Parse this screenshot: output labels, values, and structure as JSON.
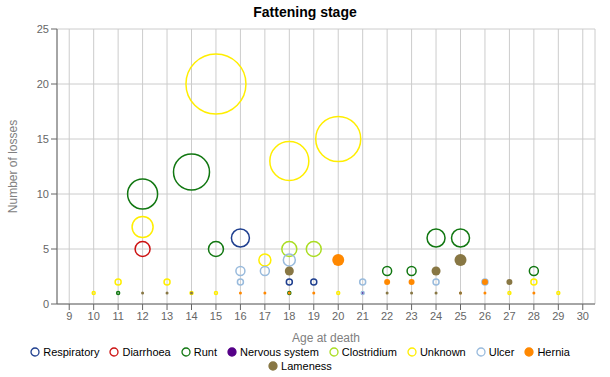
{
  "chart_data": {
    "type": "bubble",
    "title": "Fattening stage",
    "xlabel": "Age at death",
    "ylabel": "Number of losses",
    "xlim": [
      8.5,
      30.5
    ],
    "ylim": [
      0,
      25
    ],
    "xticks": [
      9,
      10,
      11,
      12,
      13,
      14,
      15,
      16,
      17,
      18,
      19,
      20,
      21,
      22,
      23,
      24,
      25,
      26,
      27,
      28,
      29,
      30
    ],
    "yticks": [
      0,
      5,
      10,
      15,
      20,
      25
    ],
    "grid": true,
    "legend": "bottom",
    "series": [
      {
        "name": "Respiratory",
        "color": "#1f3f8f",
        "marker": "open_circle",
        "x": [
          16,
          18,
          19
        ],
        "values": [
          6,
          2,
          2
        ],
        "sizes": [
          6,
          2,
          2
        ]
      },
      {
        "name": "Diarrhoea",
        "color": "#cc1111",
        "marker": "open_circle",
        "x": [
          12
        ],
        "values": [
          5
        ],
        "sizes": [
          5
        ]
      },
      {
        "name": "Runt",
        "color": "#117711",
        "marker": "open_circle",
        "x": [
          11,
          12,
          14,
          15,
          18,
          22,
          23,
          24,
          25,
          28
        ],
        "values": [
          1,
          10,
          12,
          5,
          1,
          3,
          3,
          6,
          6,
          3
        ],
        "sizes": [
          1,
          10,
          12,
          5,
          1,
          3,
          3,
          6,
          6,
          3
        ]
      },
      {
        "name": "Nervous system",
        "color": "#550088",
        "marker": "circle",
        "x": [
          21
        ],
        "values": [
          1
        ],
        "sizes": [
          1
        ]
      },
      {
        "name": "Clostridium",
        "color": "#aadd22",
        "marker": "open_circle",
        "x": [
          18,
          19
        ],
        "values": [
          5,
          5
        ],
        "sizes": [
          5,
          5
        ]
      },
      {
        "name": "Unknown",
        "color": "#ffee00",
        "marker": "open_circle",
        "x": [
          10,
          11,
          12,
          13,
          14,
          15,
          15,
          17,
          18,
          20,
          20,
          27,
          28,
          29
        ],
        "values": [
          1,
          2,
          7,
          2,
          1,
          1,
          20,
          4,
          13,
          1,
          15,
          1,
          2,
          1
        ],
        "sizes": [
          1,
          2,
          7,
          2,
          1,
          1,
          20,
          4,
          13,
          1,
          15,
          1,
          2,
          1
        ]
      },
      {
        "name": "Ulcer",
        "color": "#99bbdd",
        "marker": "open_circle",
        "x": [
          16,
          16,
          17,
          18,
          21,
          21,
          24,
          26
        ],
        "values": [
          2,
          3,
          3,
          4,
          1,
          2,
          2,
          2
        ],
        "sizes": [
          2,
          3,
          3,
          4,
          1,
          2,
          2,
          2
        ]
      },
      {
        "name": "Hernia",
        "color": "#ff8800",
        "marker": "circle",
        "x": [
          16,
          17,
          18,
          19,
          20,
          22,
          23,
          25,
          26,
          26,
          28
        ],
        "values": [
          1,
          1,
          1,
          1,
          4,
          2,
          2,
          1,
          1,
          2,
          1
        ],
        "sizes": [
          1,
          1,
          1,
          1,
          4,
          2,
          2,
          1,
          1,
          2,
          1
        ]
      },
      {
        "name": "Lameness",
        "color": "#887744",
        "marker": "circle",
        "x": [
          12,
          13,
          14,
          18,
          22,
          23,
          24,
          24,
          25,
          25,
          27
        ],
        "values": [
          1,
          1,
          1,
          3,
          1,
          1,
          1,
          3,
          1,
          4,
          2
        ],
        "sizes": [
          1,
          1,
          1,
          3,
          1,
          1,
          1,
          3,
          1,
          4,
          2
        ]
      }
    ]
  }
}
